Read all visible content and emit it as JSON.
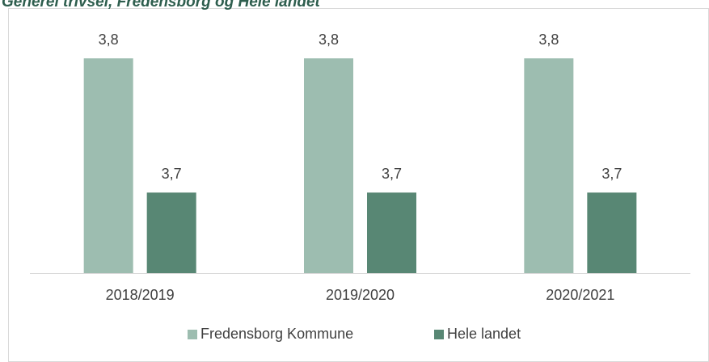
{
  "chart_data": {
    "type": "bar",
    "title": "Generel trivsel, Fredensborg og Hele landet",
    "categories": [
      "2018/2019",
      "2019/2020",
      "2020/2021"
    ],
    "series": [
      {
        "name": "Fredensborg Kommune",
        "color": "#9dbdb0",
        "values": [
          3.8,
          3.8,
          3.8
        ],
        "value_labels": [
          "3,8",
          "3,8",
          "3,8"
        ]
      },
      {
        "name": "Hele landet",
        "color": "#588774",
        "values": [
          3.7,
          3.7,
          3.7
        ],
        "value_labels": [
          "3,7",
          "3,7",
          "3,7"
        ]
      }
    ],
    "ylim": [
      3.64,
      3.82
    ],
    "legend": "bottom"
  }
}
